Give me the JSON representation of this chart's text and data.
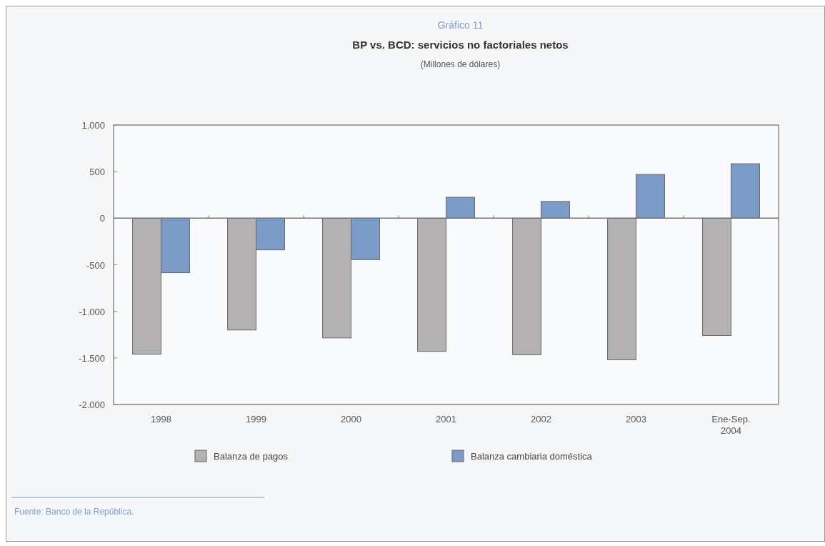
{
  "chart_data": {
    "type": "bar",
    "title": "BP vs. BCD: servicios no factoriales netos",
    "subtitle": "(Millones de dólares)",
    "annotations": [
      "Gráfico 11",
      "Fuente: Banco de la República."
    ],
    "categories": [
      "1998",
      "1999",
      "2000",
      "2001",
      "2002",
      "2003",
      "Ene-Sep. 2004"
    ],
    "series": [
      {
        "name": "Balanza de pagos",
        "color": "#b3b1b1",
        "values": [
          -1460,
          -1200,
          -1285,
          -1430,
          -1465,
          -1520,
          -1260
        ]
      },
      {
        "name": "Balanza cambiaria doméstica",
        "color": "#7b9cc6",
        "values": [
          -585,
          -340,
          -445,
          225,
          180,
          470,
          585
        ]
      }
    ],
    "ylim": [
      -2000,
      1000
    ],
    "yticks": [
      {
        "value": -2000,
        "label": "-2.000"
      },
      {
        "value": -1500,
        "label": "-1.500"
      },
      {
        "value": -1000,
        "label": "-1.000"
      },
      {
        "value": -500,
        "label": "-500"
      },
      0,
      500,
      {
        "value": 1000,
        "label": "1.000"
      }
    ],
    "legend": "bottom"
  }
}
